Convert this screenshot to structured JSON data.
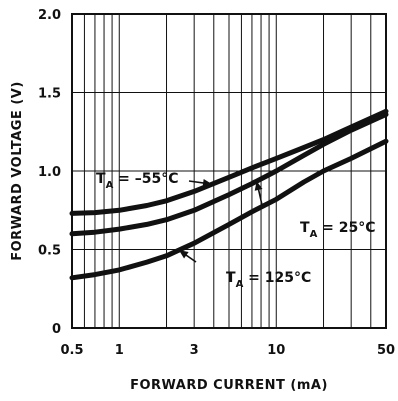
{
  "chart_data": {
    "type": "line",
    "xscale": "log",
    "xlim": [
      0.5,
      50
    ],
    "ylim": [
      0,
      2.0
    ],
    "xlabel": "FORWARD CURRENT (mA)",
    "ylabel": "FORWARD VOLTAGE (V)",
    "xticks": [
      0.5,
      1,
      3,
      10,
      50
    ],
    "xtick_labels": [
      "0.5",
      "1",
      "3",
      "10",
      "50"
    ],
    "yticks": [
      0,
      0.5,
      1.0,
      1.5,
      2.0
    ],
    "ytick_labels": [
      "0",
      "0.5",
      "1.0",
      "1.5",
      "2.0"
    ],
    "grid": true,
    "series": [
      {
        "name": "TA = -55°C",
        "x": [
          0.5,
          0.7,
          1,
          1.5,
          2,
          3,
          5,
          7,
          10,
          15,
          20,
          30,
          50
        ],
        "y": [
          0.73,
          0.735,
          0.75,
          0.78,
          0.81,
          0.87,
          0.96,
          1.02,
          1.08,
          1.15,
          1.2,
          1.28,
          1.38
        ]
      },
      {
        "name": "TA = 25°C",
        "x": [
          0.5,
          0.7,
          1,
          1.5,
          2,
          3,
          5,
          7,
          10,
          15,
          20,
          30,
          50
        ],
        "y": [
          0.6,
          0.61,
          0.63,
          0.66,
          0.69,
          0.75,
          0.85,
          0.92,
          1.0,
          1.1,
          1.17,
          1.26,
          1.36
        ]
      },
      {
        "name": "TA = 125°C",
        "x": [
          0.5,
          0.7,
          1,
          1.5,
          2,
          3,
          5,
          7,
          10,
          15,
          20,
          30,
          50
        ],
        "y": [
          0.32,
          0.34,
          0.37,
          0.42,
          0.46,
          0.54,
          0.66,
          0.74,
          0.82,
          0.93,
          1.0,
          1.08,
          1.19
        ]
      }
    ],
    "annotations": [
      {
        "main": "T",
        "sub": "A",
        "rest": " = –55°C",
        "series": 0,
        "x_at": 3.9
      },
      {
        "main": "T",
        "sub": "A",
        "rest": " = 25°C",
        "series": 1,
        "x_at": 7.5
      },
      {
        "main": "T",
        "sub": "A",
        "rest": " = 125°C",
        "series": 2,
        "x_at": 2.4
      }
    ]
  }
}
